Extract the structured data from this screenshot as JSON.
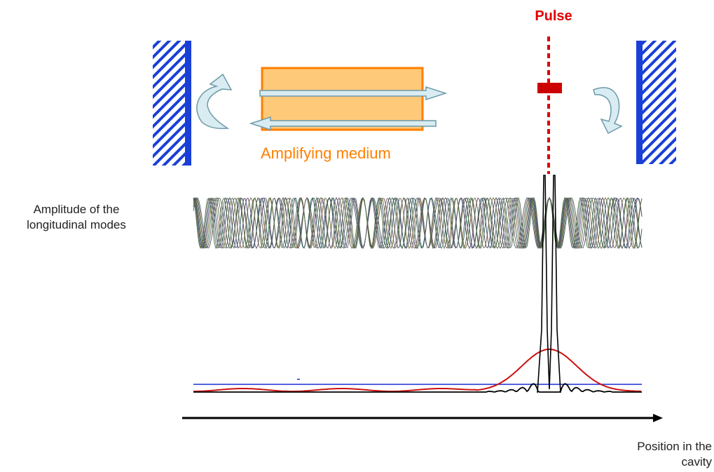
{
  "labels": {
    "pulse": "Pulse",
    "amplifying_medium": "Amplifying medium",
    "mode_amplitude": "Amplitude of the\nlongitudinal modes",
    "position_axis": "Position in the\ncavity"
  },
  "colors": {
    "mirror": "#1a3fd6",
    "medium_fill": "#ffc97a",
    "medium_border": "#ff7f00",
    "beam_arrow_fill": "#d8ecf2",
    "beam_arrow_stroke": "#6e9aa8",
    "pulse": "#e00000",
    "envelope": "#cc1010",
    "intensity": "#000000",
    "baseline": "#1a2fd6"
  }
}
